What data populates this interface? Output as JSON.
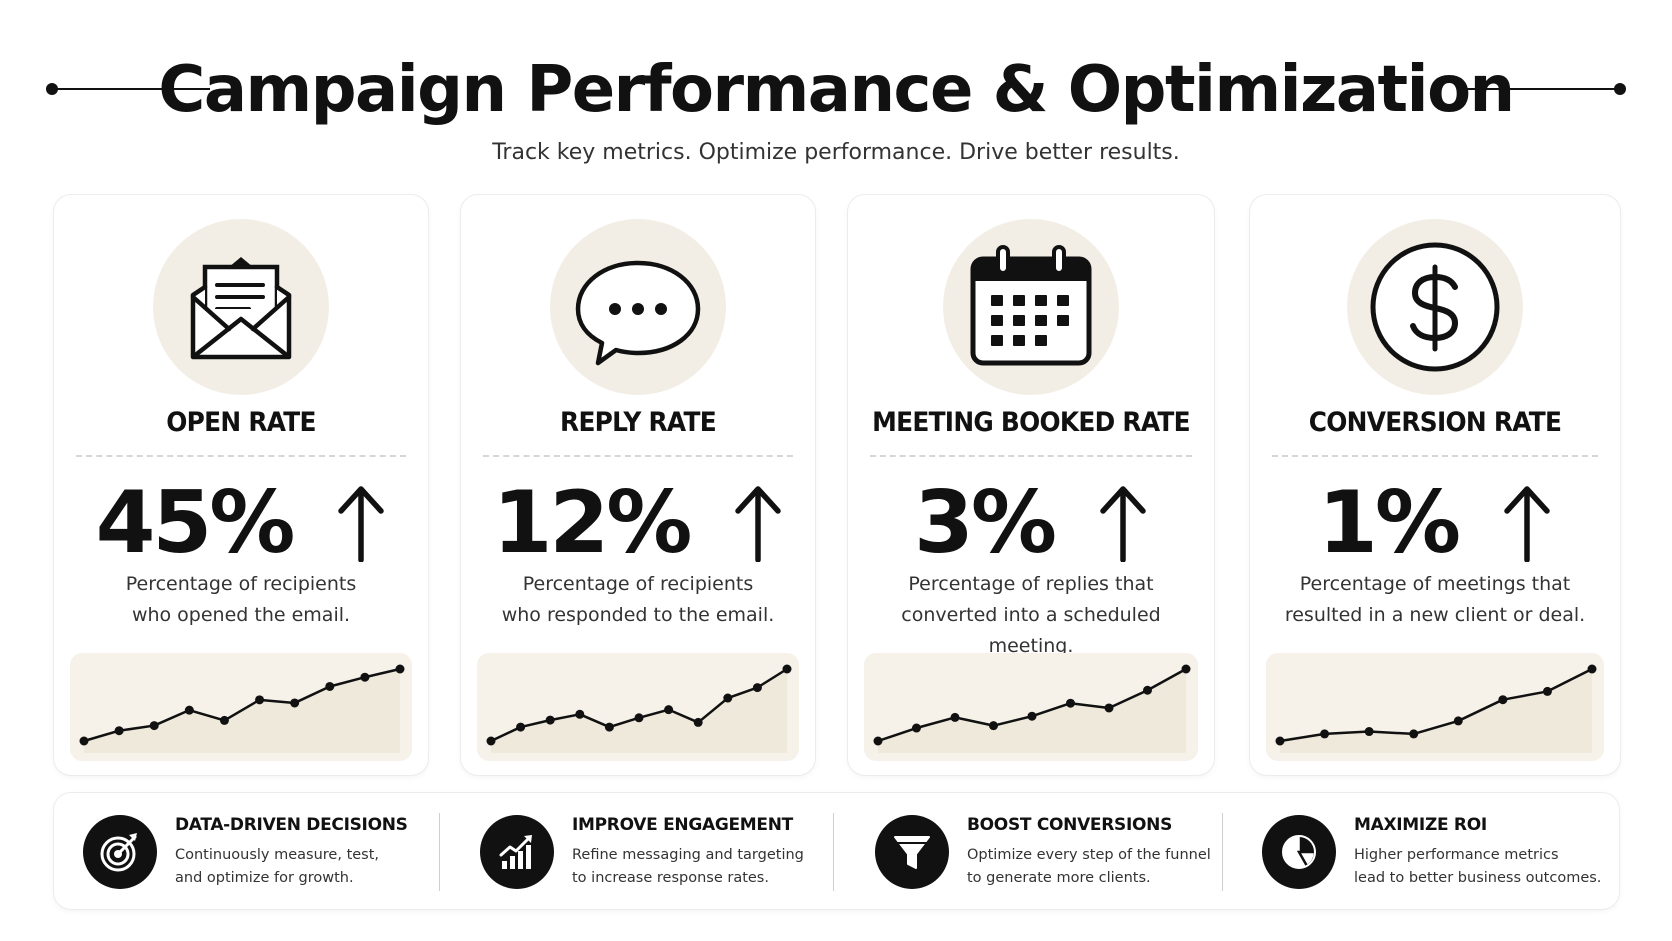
{
  "header": {
    "title": "Campaign Performance & Optimization",
    "subtitle": "Track key metrics. Optimize performance. Drive better results."
  },
  "colors": {
    "ink": "#111111",
    "icon_bg": "#f3eee5",
    "chart_bg": "#f6f2ea",
    "card_border": "#ececec"
  },
  "metrics": [
    {
      "label": "OPEN RATE",
      "value": "45%",
      "trend": "up",
      "icon": "envelope-icon",
      "desc": [
        "Percentage of recipients",
        "who opened the email."
      ],
      "trend_values": [
        0,
        1,
        1.5,
        3,
        2,
        4,
        3.7,
        5.3,
        6.2,
        7
      ]
    },
    {
      "label": "REPLY RATE",
      "value": "12%",
      "trend": "up",
      "icon": "chat-bubble-icon",
      "desc": [
        "Percentage of recipients",
        "who responded to the email."
      ],
      "trend_values": [
        0,
        1.2,
        1.8,
        2.3,
        1.2,
        2,
        2.7,
        1.6,
        3.7,
        4.6,
        6.2
      ]
    },
    {
      "label": "MEETING BOOKED RATE",
      "value": "3%",
      "trend": "up",
      "icon": "calendar-icon",
      "desc": [
        "Percentage of replies that",
        "converted into a scheduled meeting."
      ],
      "trend_values": [
        0,
        1.1,
        2,
        1.3,
        2.1,
        3.2,
        2.8,
        4.3,
        6.1
      ]
    },
    {
      "label": "CONVERSION RATE",
      "value": "1%",
      "trend": "up",
      "icon": "dollar-coin-icon",
      "desc": [
        "Percentage of meetings that",
        "resulted in a new client or deal."
      ],
      "trend_values": [
        0,
        0.6,
        0.8,
        0.6,
        1.7,
        3.5,
        4.2,
        6.1
      ]
    }
  ],
  "features": [
    {
      "title": "DATA-DRIVEN DECISIONS",
      "desc": [
        "Continuously measure, test,",
        "and optimize for growth."
      ],
      "icon": "target-icon"
    },
    {
      "title": "IMPROVE ENGAGEMENT",
      "desc": [
        "Refine messaging and targeting",
        "to increase response rates."
      ],
      "icon": "growth-chart-icon"
    },
    {
      "title": "BOOST CONVERSIONS",
      "desc": [
        "Optimize every step of the funnel",
        "to generate more clients."
      ],
      "icon": "funnel-icon"
    },
    {
      "title": "MAXIMIZE ROI",
      "desc": [
        "Higher performance metrics",
        "lead to better business outcomes."
      ],
      "icon": "pie-chart-icon"
    }
  ]
}
